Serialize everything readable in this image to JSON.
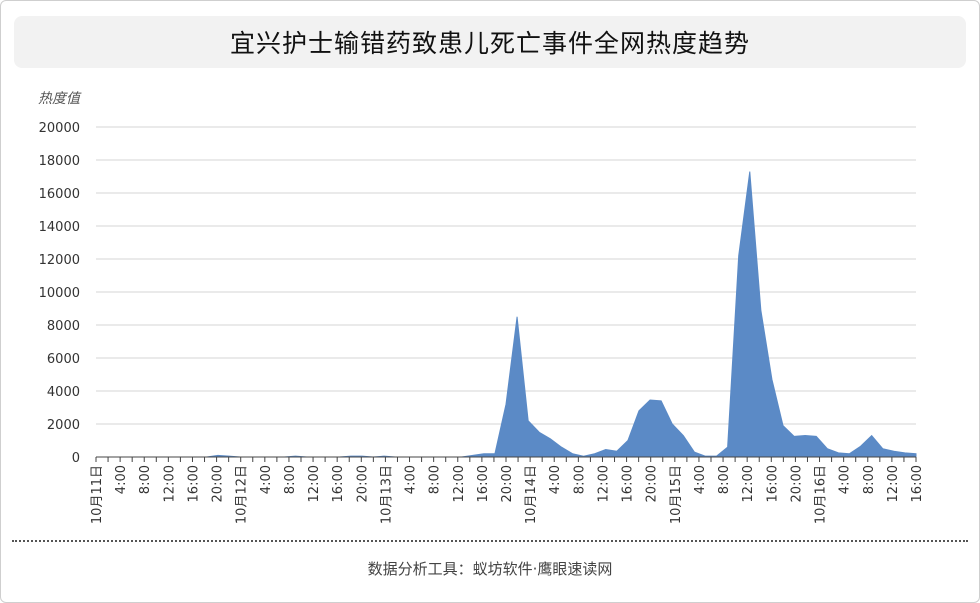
{
  "chart_data": {
    "type": "area",
    "title": "宜兴护士输错药致患儿死亡事件全网热度趋势",
    "ylabel": "热度值",
    "xlabel": "",
    "ylim": [
      0,
      20000
    ],
    "y_ticks": [
      "0",
      "2000",
      "4000",
      "6000",
      "8000",
      "10000",
      "12000",
      "14000",
      "16000",
      "18000",
      "20000"
    ],
    "x_tick_labels": [
      "10月11日",
      "4:00",
      "8:00",
      "12:00",
      "16:00",
      "20:00",
      "10月12日",
      "4:00",
      "8:00",
      "12:00",
      "16:00",
      "20:00",
      "10月13日",
      "4:00",
      "8:00",
      "12:00",
      "16:00",
      "20:00",
      "10月14日",
      "4:00",
      "8:00",
      "12:00",
      "16:00",
      "20:00",
      "10月15日",
      "4:00",
      "8:00",
      "12:00",
      "16:00",
      "20:00",
      "10月16日",
      "4:00",
      "8:00",
      "12:00",
      "16:00"
    ],
    "grid": true,
    "color": "#5b8ac6",
    "series": [
      {
        "name": "",
        "values": [
          0,
          0,
          0,
          0,
          0,
          0,
          0,
          0,
          0,
          0,
          0,
          100,
          50,
          0,
          0,
          0,
          0,
          0,
          50,
          0,
          0,
          0,
          0,
          50,
          50,
          0,
          50,
          0,
          0,
          0,
          0,
          0,
          0,
          0,
          100,
          200,
          200,
          3200,
          8500,
          2200,
          1500,
          1100,
          600,
          200,
          50,
          200,
          450,
          350,
          1000,
          2800,
          3450,
          3400,
          2000,
          1300,
          300,
          50,
          50,
          600,
          12200,
          17300,
          8900,
          4700,
          1900,
          1250,
          1300,
          1250,
          500,
          250,
          200,
          650,
          1300,
          500,
          350,
          250,
          200
        ]
      }
    ]
  },
  "footer": {
    "source": "数据分析工具：蚁坊软件·鹰眼速读网"
  }
}
